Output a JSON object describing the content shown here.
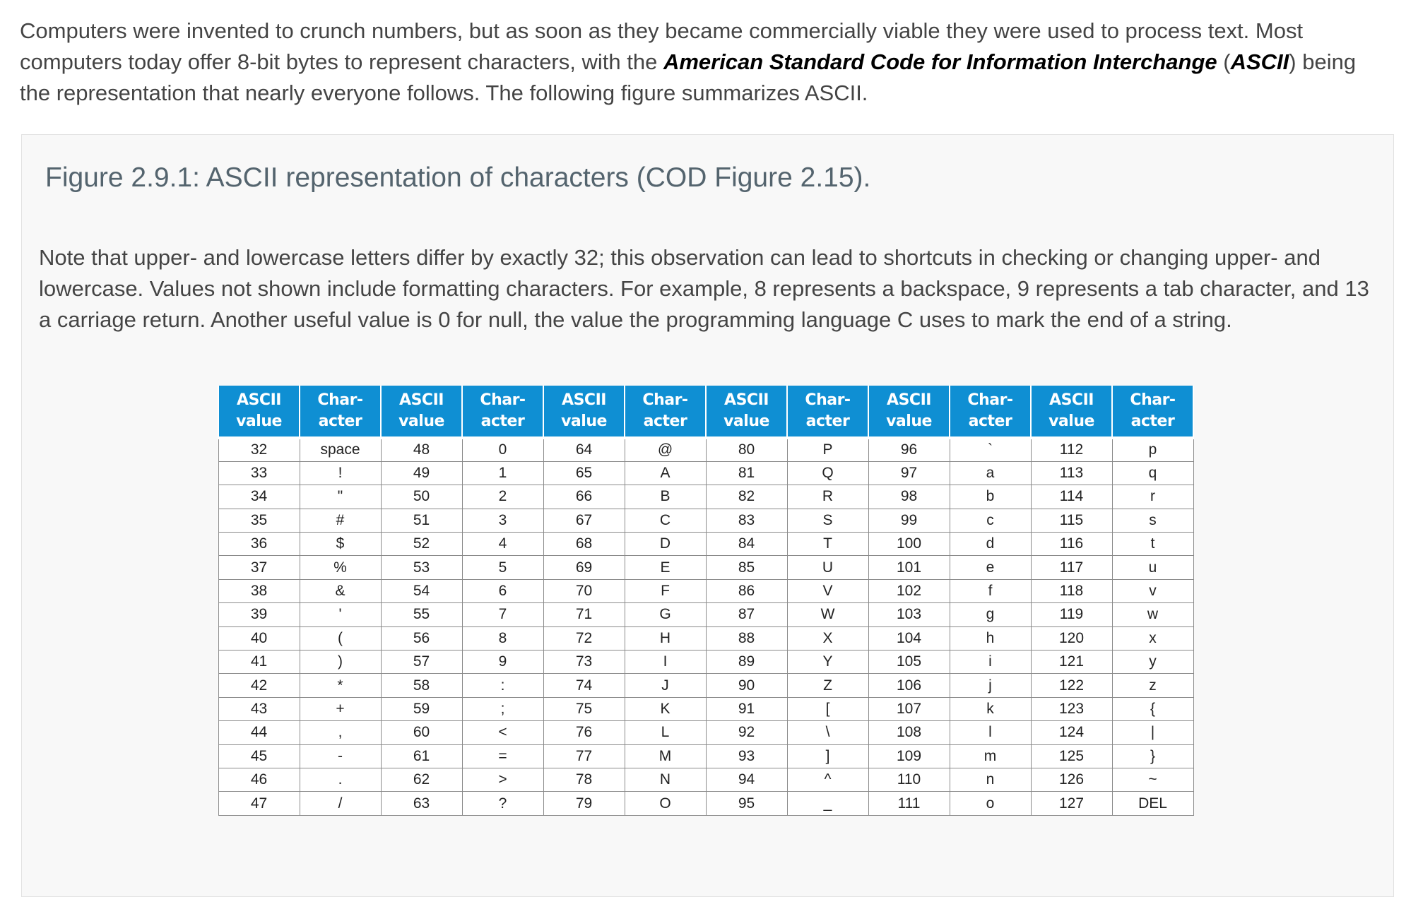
{
  "intro": {
    "text_before": "Computers were invented to crunch numbers, but as soon as they became commercially viable they were used to process text. Most computers today offer 8-bit bytes to represent characters, with the ",
    "bold_term": "American Standard Code for Information Interchange",
    "paren_open": " (",
    "bold_abbrev": "ASCII",
    "text_after": ") being the representation that nearly everyone follows. The following figure summarizes ASCII."
  },
  "figure": {
    "title": "Figure 2.9.1: ASCII representation of characters (COD Figure 2.15).",
    "note": "Note that upper- and lowercase letters differ by exactly 32; this observation can lead to shortcuts in checking or changing upper- and lowercase. Values not shown include formatting characters. For example, 8 represents a backspace, 9 represents a tab character, and 13 a carriage return. Another useful value is 0 for null, the value the programming language C uses to mark the end of a string."
  },
  "table": {
    "header_value": [
      "ASCII",
      "value"
    ],
    "header_char": [
      "Char-",
      "acter"
    ],
    "groups": [
      {
        "values": [
          "32",
          "33",
          "34",
          "35",
          "36",
          "37",
          "38",
          "39",
          "40",
          "41",
          "42",
          "43",
          "44",
          "45",
          "46",
          "47"
        ],
        "chars": [
          "space",
          "!",
          "\"",
          "#",
          "$",
          "%",
          "&",
          "'",
          "(",
          ")",
          "*",
          "+",
          ",",
          "-",
          ".",
          "/"
        ]
      },
      {
        "values": [
          "48",
          "49",
          "50",
          "51",
          "52",
          "53",
          "54",
          "55",
          "56",
          "57",
          "58",
          "59",
          "60",
          "61",
          "62",
          "63"
        ],
        "chars": [
          "0",
          "1",
          "2",
          "3",
          "4",
          "5",
          "6",
          "7",
          "8",
          "9",
          ":",
          ";",
          "<",
          "=",
          ">",
          "?"
        ]
      },
      {
        "values": [
          "64",
          "65",
          "66",
          "67",
          "68",
          "69",
          "70",
          "71",
          "72",
          "73",
          "74",
          "75",
          "76",
          "77",
          "78",
          "79"
        ],
        "chars": [
          "@",
          "A",
          "B",
          "C",
          "D",
          "E",
          "F",
          "G",
          "H",
          "I",
          "J",
          "K",
          "L",
          "M",
          "N",
          "O"
        ]
      },
      {
        "values": [
          "80",
          "81",
          "82",
          "83",
          "84",
          "85",
          "86",
          "87",
          "88",
          "89",
          "90",
          "91",
          "92",
          "93",
          "94",
          "95"
        ],
        "chars": [
          "P",
          "Q",
          "R",
          "S",
          "T",
          "U",
          "V",
          "W",
          "X",
          "Y",
          "Z",
          "[",
          "\\",
          "]",
          "^",
          "_"
        ]
      },
      {
        "values": [
          "96",
          "97",
          "98",
          "99",
          "100",
          "101",
          "102",
          "103",
          "104",
          "105",
          "106",
          "107",
          "108",
          "109",
          "110",
          "111"
        ],
        "chars": [
          "`",
          "a",
          "b",
          "c",
          "d",
          "e",
          "f",
          "g",
          "h",
          "i",
          "j",
          "k",
          "l",
          "m",
          "n",
          "o"
        ]
      },
      {
        "values": [
          "112",
          "113",
          "114",
          "115",
          "116",
          "117",
          "118",
          "119",
          "120",
          "121",
          "122",
          "123",
          "124",
          "125",
          "126",
          "127"
        ],
        "chars": [
          "p",
          "q",
          "r",
          "s",
          "t",
          "u",
          "v",
          "w",
          "x",
          "y",
          "z",
          "{",
          "|",
          "}",
          "~",
          "DEL"
        ]
      }
    ]
  }
}
